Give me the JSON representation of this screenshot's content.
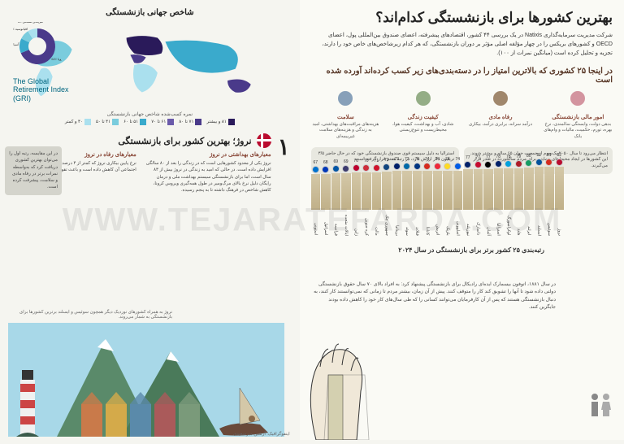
{
  "header": {
    "main_title": "بهترین کشورها برای بازنشستگی کدام‌اند؟",
    "intro": "شرکت مدیریت سرمایه‌گذاری Natixis در یک بررسی ۴۴ کشور، اقتصادهای پیشرفته، اعضای صندوق بین‌المللی پول، اعضای OECD و کشورهای بریکس را در چهار مؤلفه اصلی مؤثر بر دوران بازنشستگی، که هر کدام زیرشاخص‌های خاص خود را دارند، تجزیه و تحلیل کرده است (میانگین نمرات از ۱۰۰)."
  },
  "categories_heading": "در اینجا ۲۵ کشوری که بالاترین امتیاز را در دسته‌بندی‌های زیر کسب کرده‌اند آورده شده است",
  "categories": [
    {
      "title": "امور مالی بازنشستگی",
      "desc": "بدهی دولت، وابستگی سالمندی، نرخ بهره، تورم، حکمیت، مالیات و وام‌های بانک",
      "color": "#c97a8a"
    },
    {
      "title": "رفاه مادی",
      "desc": "درآمد سرانه، برابری درآمد، بیکاری",
      "color": "#8a6a4a"
    },
    {
      "title": "کیفیت زندگی",
      "desc": "شادی، آب و بهداشت، کیفیت هوا، محیط‌زیست و تنوع‌زیستی",
      "color": "#7a9a6a"
    },
    {
      "title": "سلامت",
      "desc": "هزینه‌های مراقبت‌های بهداشتی، امید به زندگی و هزینه‌های سلامت غیربیمه‌ای",
      "color": "#6a8aaa"
    }
  ],
  "callouts": [
    "انتظار می‌رود تا سال ۲۰۵۰ یک‌سوم از جمعیت جهان ۶۵ ساله و بیشتر شوند. این کشورها در ایجاد محیط‌های حمایتی برای مردم سالخورده در صدر قرار می‌گیرند.",
    "استرالیا به دلیل سیستم قوی صندوق بازنشستگی خود که در حال حاضر ۳/۵ تریلیون دلار ارزش دارد، در رتبه هفتم قرار گرفته است."
  ],
  "ranking": {
    "title": "رتبه‌بندی ۲۵ کشور برتر برای بازنشستگی در سال ۲۰۲۴",
    "max_score": 85,
    "bar_colors": {
      "top": "#d4c8a8",
      "bottom": "#c0b088"
    },
    "countries": [
      {
        "rank": 1,
        "name": "نروژ",
        "score": 82,
        "flag": "#ba0c2f"
      },
      {
        "rank": 2,
        "name": "سوئیس",
        "score": 81,
        "flag": "#d52b1e"
      },
      {
        "rank": 3,
        "name": "ایسلند",
        "score": 81,
        "flag": "#02529c"
      },
      {
        "rank": 4,
        "name": "ایرلند",
        "score": 80,
        "flag": "#169b62"
      },
      {
        "rank": 5,
        "name": "هلند",
        "score": 79,
        "flag": "#ae1c28"
      },
      {
        "rank": 6,
        "name": "لوکزامبورگ",
        "score": 78,
        "flag": "#00a1de"
      },
      {
        "rank": 7,
        "name": "استرالیا",
        "score": 78,
        "flag": "#012169"
      },
      {
        "rank": 8,
        "name": "آلمان",
        "score": 77,
        "flag": "#000000"
      },
      {
        "rank": 9,
        "name": "دانمارک",
        "score": 77,
        "flag": "#c60c30"
      },
      {
        "rank": 10,
        "name": "نیوزیلند",
        "score": 77,
        "flag": "#012169"
      },
      {
        "rank": 11,
        "name": "اسلوونی",
        "score": 74,
        "flag": "#005ce5"
      },
      {
        "rank": 12,
        "name": "بلژیک",
        "score": 74,
        "flag": "#fdda24"
      },
      {
        "rank": 13,
        "name": "اتریش",
        "score": 74,
        "flag": "#ed2939"
      },
      {
        "rank": 14,
        "name": "کانادا",
        "score": 74,
        "flag": "#d52b1e"
      },
      {
        "rank": 15,
        "name": "فنلاند",
        "score": 74,
        "flag": "#003580"
      },
      {
        "rank": 16,
        "name": "سوئد",
        "score": 73,
        "flag": "#006aa7"
      },
      {
        "rank": 17,
        "name": "بریتانیا",
        "score": 73,
        "flag": "#012169"
      },
      {
        "rank": 18,
        "name": "جمهوری چک",
        "score": 72,
        "flag": "#11457e"
      },
      {
        "rank": 19,
        "name": "مالت",
        "score": 71,
        "flag": "#cf142b"
      },
      {
        "rank": 20,
        "name": "کره جنوبی",
        "score": 70,
        "flag": "#cd2e3a"
      },
      {
        "rank": 21,
        "name": "ژاپن",
        "score": 70,
        "flag": "#bc002d"
      },
      {
        "rank": 22,
        "name": "ایالات متحده",
        "score": 69,
        "flag": "#3c3b6e"
      },
      {
        "rank": 23,
        "name": "فرانسه",
        "score": 69,
        "flag": "#0055a4"
      },
      {
        "rank": 24,
        "name": "اسرائیل",
        "score": 68,
        "flag": "#0038b8"
      },
      {
        "rank": 25,
        "name": "استونی",
        "score": 67,
        "flag": "#0072ce"
      }
    ]
  },
  "bottom_text": "در سال ۱۸۸۱، اتوفون بیسمارک ایده‌ای رادیکال برای بازنشستگی پیشنهاد کرد: به افراد بالای ۷۰ سال حقوق بازنشستگی دولتی داده شود تا آنها را تشویق کند کار را متوقف کنند. پیش از آن زمان، بیشتر مردم تا زمانی که نمی‌توانستند کار کنند، به دنبال بازنشستگی هستند که پس از آن کارفرمایان می‌توانند کسانی را که طی سال‌های کار خود را کاهش داده بودند جایگزین کنند.",
  "gri": {
    "box_title": "شاخص جهانی بازنشستگی",
    "label": "The Global\nRetirement Index\n(GRI)",
    "legend_title": "نمره کسب‌شده شاخص جهانی بازنشستگی",
    "legend": [
      {
        "label": "۸۱ و بیشتر",
        "color": "#2a1a5a"
      },
      {
        "label": "۷۱ تا ۸۰",
        "color": "#4a3a8a"
      },
      {
        "label": "۶۱ تا ۷۰",
        "color": "#6a5aaa"
      },
      {
        "label": "۵۱ تا ۶۰",
        "color": "#3aaacc"
      },
      {
        "label": "۴۱ تا ۵۰",
        "color": "#7accdd"
      },
      {
        "label": "۴۰ و کمتر",
        "color": "#aae0ee"
      }
    ],
    "donut": {
      "segments": [
        {
          "label": "اروپا",
          "value": 62,
          "color": "#4a3a8a"
        },
        {
          "label": "آسیا",
          "value": 12,
          "color": "#3aaacc"
        },
        {
          "label": "اقیانوسیه",
          "value": 8,
          "color": "#7accdd"
        },
        {
          "label": "آمریکای شمالی",
          "value": 8,
          "color": "#aae0ee"
        }
      ]
    }
  },
  "norway": {
    "rank": "۱",
    "title": "نروژ؛ بهترین کشور برای بازنشستگی",
    "cols": [
      {
        "title": "معیارهای بهداشتی در نروژ",
        "text": "نروژ یکی از معدود کشورهایی است که در زندگی را بعد از ۸۰ سالگی افزایش داده است. در حالی که امید به زندگی در نروژ بیش از ۸۳ سال است، اما برای بازنشستگی سیستم بهداشت ملی و درمان رایگان دلیل نرخ بالای مرگ‌ومیر در طول همه‌گیری ویروس کرونا، کاهش شاخص در فرهنگ داشته تا به پنجم رسیده."
      },
      {
        "title": "معیارهای رفاه در نروژ",
        "text": "نرخ پایین بیکاری نروژ که کمتر از ۴ درصد است، فشار بر شبکه تأمین اجتماعی آن کاهش داده است و باعث تقویت این سیستم شده است."
      }
    ]
  },
  "side_note": "در این مقایسه، رتبه اول را می‌توان بهترین کشوری دریافت کرد که به‌واسطه نمرات برتر در رفاه مادی و سلامت، پیشرفت کرده است.",
  "footer": {
    "left": "نروژ به همراه کشورهای نوردیک دیگر همچون سوئیس و ایسلند برترین کشورها برای بازنشستگی به شمار می‌روند.",
    "right": "اینفوگرافیک: آرشین میرسعیدی"
  },
  "watermark": "WWW.TEJARATEFARDA.COM",
  "scene_colors": {
    "sky": "#a8d8e8",
    "mountain": "#5a8a6a",
    "mountain2": "#4a7a5a",
    "houses": [
      "#c97a4a",
      "#d4aa4a",
      "#5a8aaa",
      "#aa5a5a",
      "#7a9a7a"
    ],
    "lighthouse_red": "#cc4444",
    "lighthouse_white": "#f0f0f0",
    "ship": "#6a4a3a",
    "sail": "#d4c8a8"
  }
}
